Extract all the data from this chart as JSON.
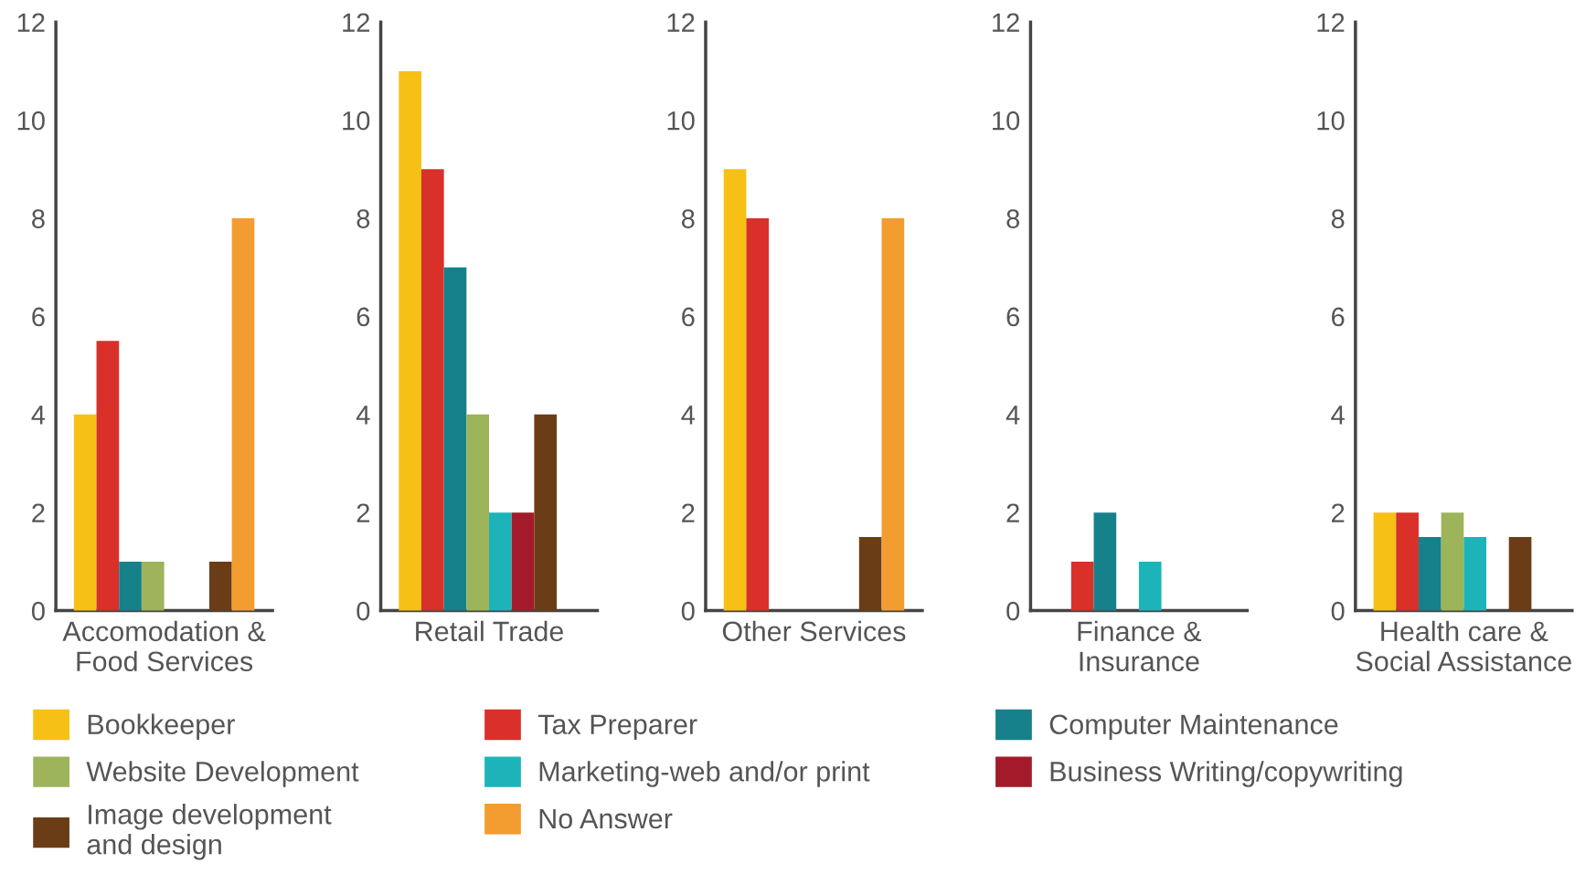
{
  "chart_data": [
    {
      "type": "bar",
      "categories": [
        "Accomodation &\nFood Services"
      ],
      "ylim": [
        0,
        12
      ],
      "yticks": [
        0,
        2,
        4,
        6,
        8,
        10,
        12
      ],
      "grid": false,
      "legend": "bottom",
      "series": [
        {
          "name": "Bookkeeper",
          "color": "#f6c015",
          "values": [
            4
          ]
        },
        {
          "name": "Tax Preparer",
          "color": "#d9302a",
          "values": [
            5.5
          ]
        },
        {
          "name": "Computer Maintenance",
          "color": "#16818a",
          "values": [
            1
          ]
        },
        {
          "name": "Website Development",
          "color": "#9db45a",
          "values": [
            1
          ]
        },
        {
          "name": "Marketing-web and/or print",
          "color": "#1db4b9",
          "values": [
            null
          ]
        },
        {
          "name": "Business Writing/copywriting",
          "color": "#a31b2a",
          "values": [
            null
          ]
        },
        {
          "name": "Image development\nand design",
          "color": "#6b3d17",
          "values": [
            1
          ]
        },
        {
          "name": "No Answer",
          "color": "#f39c2f",
          "values": [
            8
          ]
        }
      ]
    },
    {
      "type": "bar",
      "categories": [
        "Retail Trade"
      ],
      "ylim": [
        0,
        12
      ],
      "yticks": [
        0,
        2,
        4,
        6,
        8,
        10,
        12
      ],
      "grid": false,
      "series": [
        {
          "color": "#f6c015",
          "values": [
            11
          ]
        },
        {
          "color": "#d9302a",
          "values": [
            9
          ]
        },
        {
          "color": "#16818a",
          "values": [
            7
          ]
        },
        {
          "color": "#9db45a",
          "values": [
            4
          ]
        },
        {
          "color": "#1db4b9",
          "values": [
            2
          ]
        },
        {
          "color": "#a31b2a",
          "values": [
            2
          ]
        },
        {
          "color": "#6b3d17",
          "values": [
            4
          ]
        },
        {
          "color": "#f39c2f",
          "values": [
            null
          ]
        }
      ]
    },
    {
      "type": "bar",
      "categories": [
        "Other Services"
      ],
      "ylim": [
        0,
        12
      ],
      "yticks": [
        0,
        2,
        4,
        6,
        8,
        10,
        12
      ],
      "grid": false,
      "series": [
        {
          "color": "#f6c015",
          "values": [
            9
          ]
        },
        {
          "color": "#d9302a",
          "values": [
            8
          ]
        },
        {
          "color": "#16818a",
          "values": [
            null
          ]
        },
        {
          "color": "#9db45a",
          "values": [
            null
          ]
        },
        {
          "color": "#1db4b9",
          "values": [
            null
          ]
        },
        {
          "color": "#a31b2a",
          "values": [
            null
          ]
        },
        {
          "color": "#6b3d17",
          "values": [
            1.5
          ]
        },
        {
          "color": "#f39c2f",
          "values": [
            8
          ]
        }
      ]
    },
    {
      "type": "bar",
      "categories": [
        "Finance &\nInsurance"
      ],
      "ylim": [
        0,
        12
      ],
      "yticks": [
        0,
        2,
        4,
        6,
        8,
        10,
        12
      ],
      "grid": false,
      "series": [
        {
          "color": "#f6c015",
          "values": [
            null
          ]
        },
        {
          "color": "#d9302a",
          "values": [
            1
          ]
        },
        {
          "color": "#16818a",
          "values": [
            2
          ]
        },
        {
          "color": "#9db45a",
          "values": [
            null
          ]
        },
        {
          "color": "#1db4b9",
          "values": [
            1
          ]
        },
        {
          "color": "#a31b2a",
          "values": [
            null
          ]
        },
        {
          "color": "#6b3d17",
          "values": [
            null
          ]
        },
        {
          "color": "#f39c2f",
          "values": [
            null
          ]
        }
      ]
    },
    {
      "type": "bar",
      "categories": [
        "Health care &\nSocial Assistance"
      ],
      "ylim": [
        0,
        12
      ],
      "yticks": [
        0,
        2,
        4,
        6,
        8,
        10,
        12
      ],
      "grid": false,
      "series": [
        {
          "color": "#f6c015",
          "values": [
            2
          ]
        },
        {
          "color": "#d9302a",
          "values": [
            2
          ]
        },
        {
          "color": "#16818a",
          "values": [
            1.5
          ]
        },
        {
          "color": "#9db45a",
          "values": [
            2
          ]
        },
        {
          "color": "#1db4b9",
          "values": [
            1.5
          ]
        },
        {
          "color": "#a31b2a",
          "values": [
            null
          ]
        },
        {
          "color": "#6b3d17",
          "values": [
            1.5
          ]
        },
        {
          "color": "#f39c2f",
          "values": [
            null
          ]
        }
      ]
    }
  ]
}
